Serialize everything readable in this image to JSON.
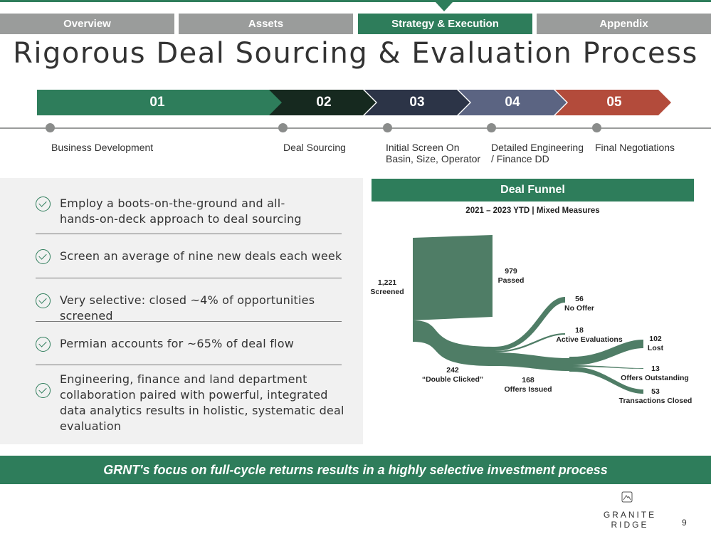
{
  "nav": {
    "tabs": [
      {
        "label": "Overview",
        "active": false
      },
      {
        "label": "Assets",
        "active": false
      },
      {
        "label": "Strategy & Execution",
        "active": true
      },
      {
        "label": "Appendix",
        "active": false
      }
    ]
  },
  "title": "Rigorous Deal Sourcing & Evaluation Process",
  "process": {
    "steps": [
      {
        "number": "01",
        "label": "Business Development",
        "color": "#2e7d5b"
      },
      {
        "number": "02",
        "label": "Deal Sourcing",
        "color": "#16291f"
      },
      {
        "number": "03",
        "label_lines": [
          "Initial Screen On",
          "Basin, Size, Operator"
        ],
        "color": "#2c3447"
      },
      {
        "number": "04",
        "label_lines": [
          "Detailed Engineering",
          "/ Finance DD"
        ],
        "color": "#5b6482"
      },
      {
        "number": "05",
        "label": "Final Negotiations",
        "color": "#b34b3b"
      }
    ]
  },
  "bullets": [
    {
      "lines": [
        "Employ a boots-on-the-ground and all-",
        "hands-on-deck approach to deal sourcing"
      ]
    },
    {
      "lines": [
        "Screen an average of nine new deals each week"
      ]
    },
    {
      "lines": [
        "Very selective: closed ~4% of opportunities screened"
      ]
    },
    {
      "lines": [
        "Permian accounts for ~65% of deal flow"
      ]
    },
    {
      "lines": [
        "Engineering, finance and land department",
        "collaboration paired with powerful, integrated",
        "data analytics results in holistic, systematic deal",
        "evaluation"
      ]
    }
  ],
  "funnel": {
    "header": "Deal Funnel",
    "subtitle": "2021 – 2023 YTD | Mixed Measures"
  },
  "chart_data": {
    "type": "sankey",
    "color": "#4f7d66",
    "nodes": [
      {
        "id": "screened",
        "value": "1,221",
        "label": "Screened"
      },
      {
        "id": "passed",
        "value": "979",
        "label": "Passed"
      },
      {
        "id": "double_clicked",
        "value": "242",
        "label": "“Double Clicked”"
      },
      {
        "id": "no_offer",
        "value": "56",
        "label": "No Offer"
      },
      {
        "id": "active_evaluations",
        "value": "18",
        "label": "Active Evaluations"
      },
      {
        "id": "offers_issued",
        "value": "168",
        "label": "Offers Issued"
      },
      {
        "id": "lost",
        "value": "102",
        "label": "Lost"
      },
      {
        "id": "offers_outstanding",
        "value": "13",
        "label": "Offers Outstanding"
      },
      {
        "id": "transactions_closed",
        "value": "53",
        "label": "Transactions Closed"
      }
    ],
    "links": [
      {
        "source": "screened",
        "target": "passed",
        "value": 979
      },
      {
        "source": "screened",
        "target": "double_clicked",
        "value": 242
      },
      {
        "source": "double_clicked",
        "target": "no_offer",
        "value": 56
      },
      {
        "source": "double_clicked",
        "target": "active_evaluations",
        "value": 18
      },
      {
        "source": "double_clicked",
        "target": "offers_issued",
        "value": 168
      },
      {
        "source": "offers_issued",
        "target": "lost",
        "value": 102
      },
      {
        "source": "offers_issued",
        "target": "offers_outstanding",
        "value": 13
      },
      {
        "source": "offers_issued",
        "target": "transactions_closed",
        "value": 53
      }
    ]
  },
  "banner": "GRNT's focus on full-cycle returns results in a highly selective investment process",
  "footer": {
    "logo_text": "GRANITE RIDGE",
    "page_number": "9",
    "logo_icon": "mountain-icon"
  }
}
